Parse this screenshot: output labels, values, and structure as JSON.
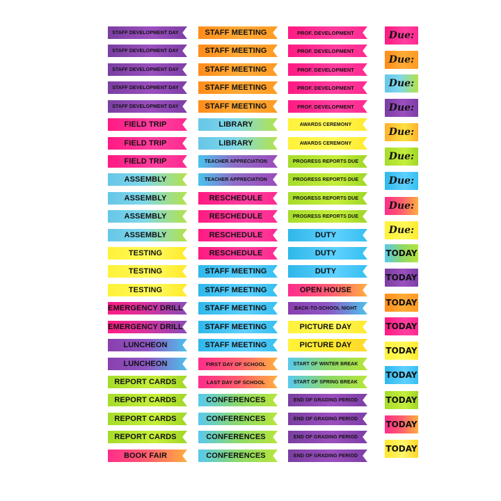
{
  "sheet": {
    "column_a": [
      {
        "text": "STAFF DEVELOPMENT DAY",
        "color": "#8a45b0"
      },
      {
        "text": "STAFF DEVELOPMENT DAY",
        "color": "#8a45b0"
      },
      {
        "text": "STAFF DEVELOPMENT DAY",
        "color": "#8a45b0"
      },
      {
        "text": "STAFF DEVELOPMENT DAY",
        "color": "#8a45b0"
      },
      {
        "text": "STAFF DEVELOPMENT DAY",
        "color": "#8a45b0"
      },
      {
        "text": "FIELD TRIP",
        "color": "#ff1a82"
      },
      {
        "text": "FIELD TRIP",
        "color": "#ff1a82"
      },
      {
        "text": "FIELD TRIP",
        "color": "#ff1a82"
      },
      {
        "text": "ASSEMBLY",
        "color": "#6fcbe3"
      },
      {
        "text": "ASSEMBLY",
        "color": "#6fcbe3"
      },
      {
        "text": "ASSEMBLY",
        "color": "#6fcbe3"
      },
      {
        "text": "ASSEMBLY",
        "color": "#6fcbe3"
      },
      {
        "text": "TESTING",
        "color": "#fff23a"
      },
      {
        "text": "TESTING",
        "color": "#fff23a"
      },
      {
        "text": "TESTING",
        "color": "#fff23a"
      },
      {
        "text": "EMERGENCY DRILL",
        "color": "#ff1c82"
      },
      {
        "text": "EMERGENCY DRILL",
        "color": "#ff1c82"
      },
      {
        "text": "LUNCHEON",
        "color": "#8a3fae"
      },
      {
        "text": "LUNCHEON",
        "color": "#8a3fae"
      },
      {
        "text": "REPORT CARDS",
        "color": "#a6dc2b"
      },
      {
        "text": "REPORT CARDS",
        "color": "#a6dc2b"
      },
      {
        "text": "REPORT CARDS",
        "color": "#a6dc2b"
      },
      {
        "text": "REPORT CARDS",
        "color": "#a6dc2b"
      },
      {
        "text": "BOOK FAIR",
        "color": "#ff2d8a"
      }
    ],
    "column_b": [
      {
        "text": "STAFF MEETING",
        "color": "#ff9a22"
      },
      {
        "text": "STAFF MEETING",
        "color": "#ff9a22"
      },
      {
        "text": "STAFF MEETING",
        "color": "#ff9a22"
      },
      {
        "text": "STAFF MEETING",
        "color": "#ff9a22"
      },
      {
        "text": "STAFF MEETING",
        "color": "#ff9a22"
      },
      {
        "text": "LIBRARY",
        "color": "#67c6e8"
      },
      {
        "text": "LIBRARY",
        "color": "#67c6e8"
      },
      {
        "text": "TEACHER APPRECIATION",
        "color": "#8a3fae"
      },
      {
        "text": "TEACHER APPRECIATION",
        "color": "#8a3fae"
      },
      {
        "text": "RESCHEDULE",
        "color": "#ff1a82"
      },
      {
        "text": "RESCHEDULE",
        "color": "#ff1a82"
      },
      {
        "text": "RESCHEDULE",
        "color": "#ff1a82"
      },
      {
        "text": "RESCHEDULE",
        "color": "#ff1a82"
      },
      {
        "text": "STAFF MEETING",
        "color": "#2fb8ea"
      },
      {
        "text": "STAFF MEETING",
        "color": "#2fb8ea"
      },
      {
        "text": "STAFF MEETING",
        "color": "#2fb8ea"
      },
      {
        "text": "STAFF MEETING",
        "color": "#2fb8ea"
      },
      {
        "text": "STAFF MEETING",
        "color": "#2fb8ea"
      },
      {
        "text": "FIRST DAY OF SCHOOL",
        "color": "#ff2d8a"
      },
      {
        "text": "LAST DAY OF SCHOOL",
        "color": "#ff2d8a"
      },
      {
        "text": "CONFERENCES",
        "color": "#58c9ee"
      },
      {
        "text": "CONFERENCES",
        "color": "#58c9ee"
      },
      {
        "text": "CONFERENCES",
        "color": "#58c9ee"
      },
      {
        "text": "CONFERENCES",
        "color": "#58c9ee"
      }
    ],
    "column_c": [
      {
        "text": "PROF. DEVELOPMENT",
        "color": "#ff1a82"
      },
      {
        "text": "PROF. DEVELOPMENT",
        "color": "#ff1a82"
      },
      {
        "text": "PROF. DEVELOPMENT",
        "color": "#ff1a82"
      },
      {
        "text": "PROF. DEVELOPMENT",
        "color": "#ff1a82"
      },
      {
        "text": "PROF. DEVELOPMENT",
        "color": "#ff1a82"
      },
      {
        "text": "AWARDS CEREMONY",
        "color": "#fff23a"
      },
      {
        "text": "AWARDS CEREMONY",
        "color": "#fff23a"
      },
      {
        "text": "PROGRESS REPORTS DUE",
        "color": "#a6dc2b"
      },
      {
        "text": "PROGRESS REPORTS DUE",
        "color": "#a6dc2b"
      },
      {
        "text": "PROGRESS REPORTS DUE",
        "color": "#a6dc2b"
      },
      {
        "text": "PROGRESS REPORTS DUE",
        "color": "#a6dc2b"
      },
      {
        "text": "DUTY",
        "color": "#2fb8ea"
      },
      {
        "text": "DUTY",
        "color": "#2fb8ea"
      },
      {
        "text": "DUTY",
        "color": "#2fb8ea"
      },
      {
        "text": "OPEN HOUSE",
        "color": "#ff2d8a"
      },
      {
        "text": "BACK-TO-SCHOOL NIGHT",
        "color": "#8a3fae"
      },
      {
        "text": "PICTURE DAY",
        "color": "#ffe72c"
      },
      {
        "text": "PICTURE DAY",
        "color": "#ffe72c"
      },
      {
        "text": "START OF WINTER BREAK",
        "color": "#58c9ee"
      },
      {
        "text": "START OF SPRING BREAK",
        "color": "#58c9ee"
      },
      {
        "text": "END OF GRADING PERIOD",
        "color": "#8a3fae"
      },
      {
        "text": "END OF GRADING PERIOD",
        "color": "#8a3fae"
      },
      {
        "text": "END OF GRADING PERIOD",
        "color": "#8a3fae"
      },
      {
        "text": "END OF GRADING PERIOD",
        "color": "#8a3fae"
      }
    ],
    "column_d": [
      {
        "text": "Due:",
        "color": "#ff1a82"
      },
      {
        "text": "Due:",
        "color": "#ff9a22"
      },
      {
        "text": "Due:",
        "color": "#67c6e8"
      },
      {
        "text": "Due:",
        "color": "#8a3fae"
      },
      {
        "text": "Due:",
        "color": "#ffb02e"
      },
      {
        "text": "Due:",
        "color": "#a6dc2b"
      },
      {
        "text": "Due:",
        "color": "#2fb8ea"
      },
      {
        "text": "Due:",
        "color": "#ff2d8a"
      },
      {
        "text": "Due:",
        "color": "#fff23a"
      },
      {
        "text": "TODAY",
        "color": "#67c6e8"
      },
      {
        "text": "TODAY",
        "color": "#8a3fae"
      },
      {
        "text": "TODAY",
        "color": "#ff9a22"
      },
      {
        "text": "TODAY",
        "color": "#ff1a82"
      },
      {
        "text": "TODAY",
        "color": "#fff23a"
      },
      {
        "text": "TODAY",
        "color": "#2fb8ea"
      },
      {
        "text": "TODAY",
        "color": "#a6dc2b"
      },
      {
        "text": "TODAY",
        "color": "#ff2d8a"
      },
      {
        "text": "TODAY",
        "color": "#ffe72c"
      }
    ]
  }
}
